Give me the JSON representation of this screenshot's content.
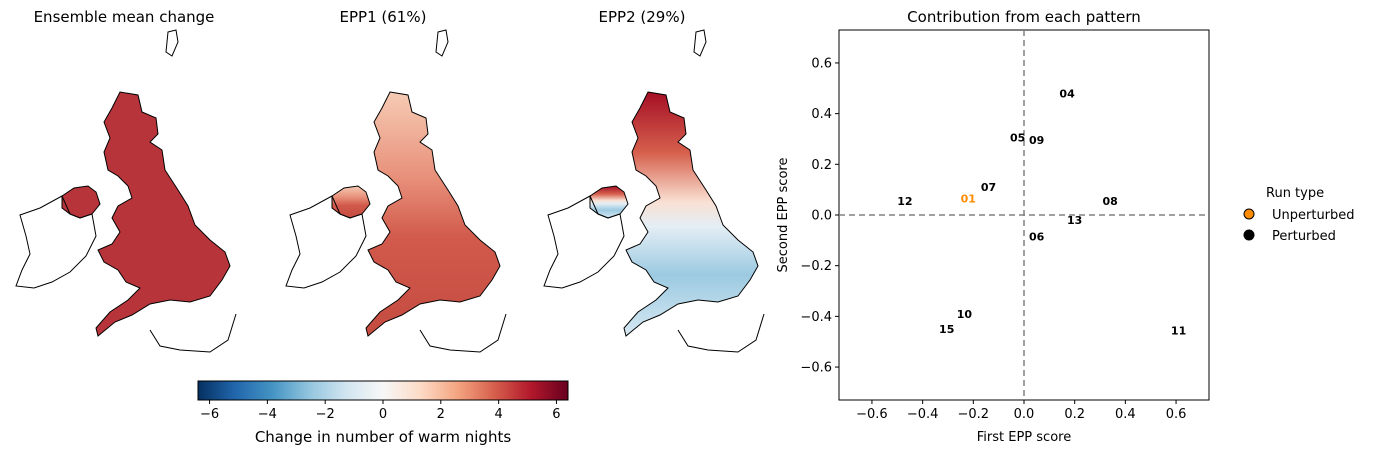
{
  "maps": [
    {
      "title": "Ensemble mean change",
      "fill": "uniform-strong"
    },
    {
      "title": "EPP1 (61%)",
      "fill": "gradient-north-light"
    },
    {
      "title": "EPP2 (29%)",
      "fill": "north-red-south-blue"
    }
  ],
  "colorbar": {
    "label": "Change in number of warm nights",
    "ticks": [
      "−6",
      "−4",
      "−2",
      "0",
      "2",
      "4",
      "6"
    ],
    "range": [
      -6.4,
      6.4
    ],
    "colormap": "RdBu_r"
  },
  "chart_data": {
    "type": "scatter",
    "title": "Contribution from each pattern",
    "xlabel": "First EPP score",
    "ylabel": "Second EPP score",
    "xlim": [
      -0.73,
      0.73
    ],
    "ylim": [
      -0.73,
      0.73
    ],
    "xticks": [
      "−0.6",
      "−0.4",
      "−0.2",
      "0.0",
      "0.2",
      "0.4",
      "0.6"
    ],
    "yticks": [
      "−0.6",
      "−0.4",
      "−0.2",
      "0.0",
      "0.2",
      "0.4",
      "0.6"
    ],
    "xtick_values": [
      -0.6,
      -0.4,
      -0.2,
      0.0,
      0.2,
      0.4,
      0.6
    ],
    "ytick_values": [
      -0.6,
      -0.4,
      -0.2,
      0.0,
      0.2,
      0.4,
      0.6
    ],
    "reference_lines": {
      "x": 0.0,
      "y": 0.0,
      "style": "dashed",
      "color": "#808080"
    },
    "points": [
      {
        "label": "01",
        "x": -0.22,
        "y": 0.065,
        "type": "Unperturbed"
      },
      {
        "label": "04",
        "x": 0.17,
        "y": 0.48,
        "type": "Perturbed"
      },
      {
        "label": "05",
        "x": -0.025,
        "y": 0.305,
        "type": "Perturbed"
      },
      {
        "label": "06",
        "x": 0.05,
        "y": -0.085,
        "type": "Perturbed"
      },
      {
        "label": "07",
        "x": -0.14,
        "y": 0.11,
        "type": "Perturbed"
      },
      {
        "label": "08",
        "x": 0.34,
        "y": 0.055,
        "type": "Perturbed"
      },
      {
        "label": "09",
        "x": 0.05,
        "y": 0.295,
        "type": "Perturbed"
      },
      {
        "label": "10",
        "x": -0.235,
        "y": -0.39,
        "type": "Perturbed"
      },
      {
        "label": "11",
        "x": 0.61,
        "y": -0.455,
        "type": "Perturbed"
      },
      {
        "label": "12",
        "x": -0.47,
        "y": 0.055,
        "type": "Perturbed"
      },
      {
        "label": "13",
        "x": 0.2,
        "y": -0.02,
        "type": "Perturbed"
      },
      {
        "label": "15",
        "x": -0.305,
        "y": -0.45,
        "type": "Perturbed"
      }
    ],
    "legend": {
      "title": "Run type",
      "placement": "outside-right",
      "entries": [
        {
          "label": "Unperturbed",
          "color": "#ff8c00"
        },
        {
          "label": "Perturbed",
          "color": "#000000"
        }
      ]
    }
  }
}
